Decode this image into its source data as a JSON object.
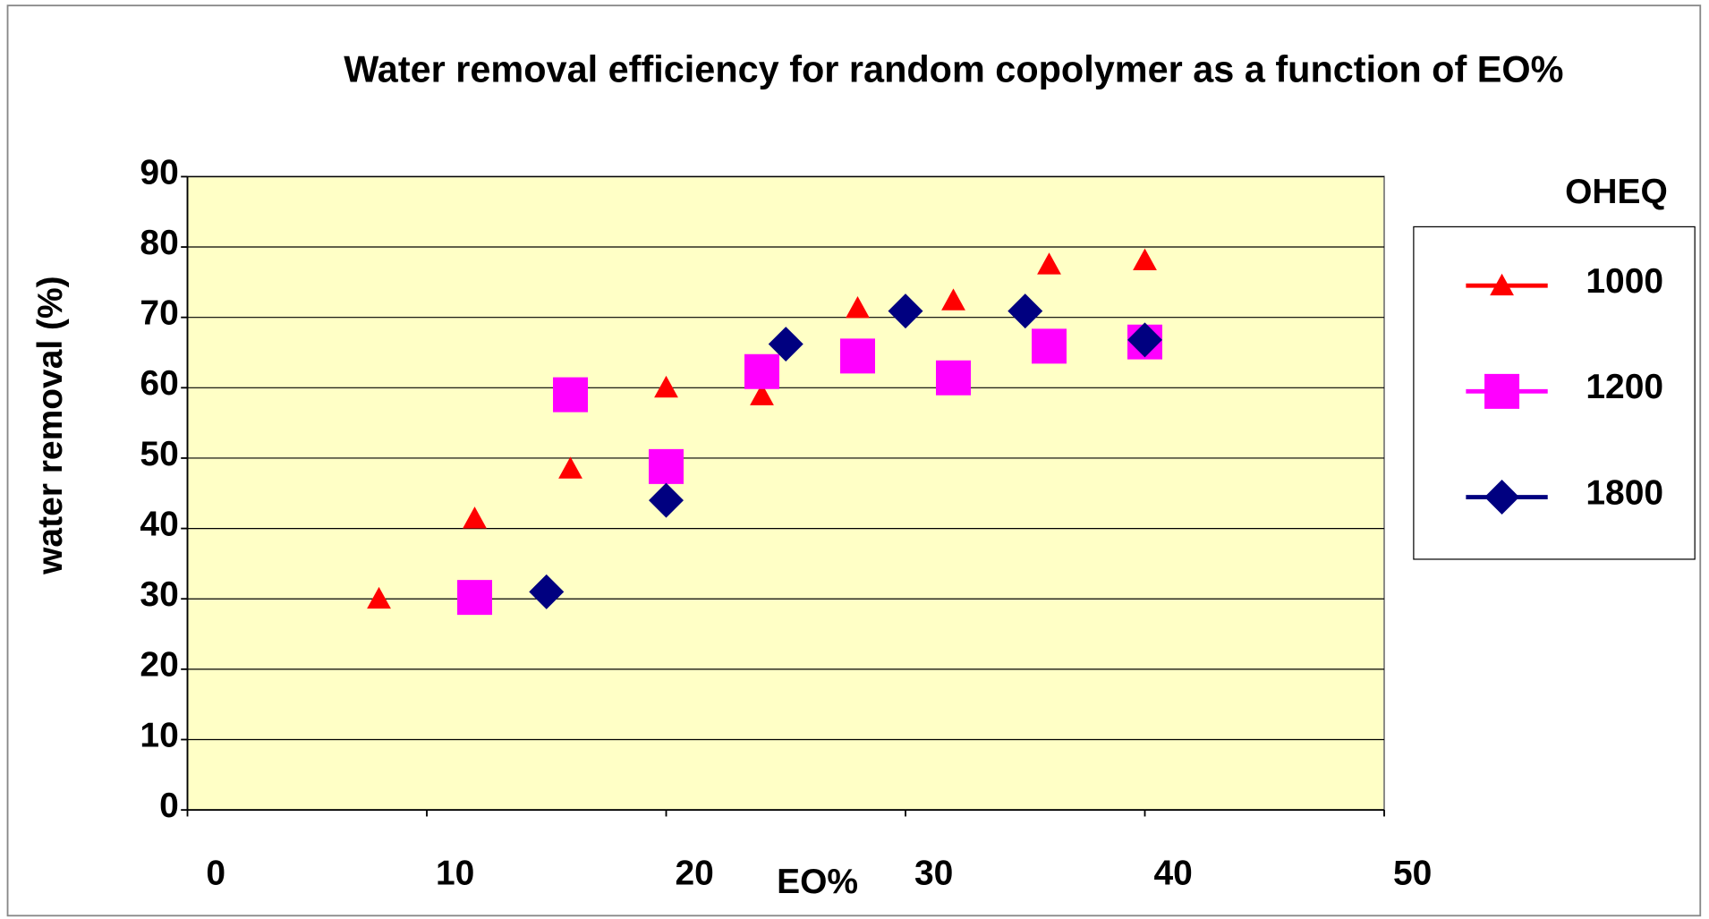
{
  "chart_data": {
    "type": "scatter",
    "title": "Water removal efficiency for random copolymer as a function of EO%",
    "xlabel": "EO%",
    "ylabel": "water removal (%)",
    "legend_title": "OHEQ",
    "legend": "right",
    "xlim": [
      0,
      50
    ],
    "xticks": [
      0,
      10,
      20,
      30,
      40,
      50
    ],
    "ylim": [
      0,
      90
    ],
    "yticks": [
      0,
      10,
      20,
      30,
      40,
      50,
      60,
      70,
      80,
      90
    ],
    "grid": true,
    "background": "#ffffc6",
    "series": [
      {
        "name": "1000",
        "color": "#ff0000",
        "marker": "triangle",
        "x": [
          8,
          12,
          16,
          20,
          24,
          28,
          32,
          36,
          40
        ],
        "values": [
          30,
          41.4,
          48.5,
          60,
          58.9,
          71.3,
          72.4,
          77.5,
          78.1
        ]
      },
      {
        "name": "1200",
        "color": "#ff00ff",
        "marker": "square",
        "x": [
          12,
          16,
          20,
          24,
          28,
          32,
          36,
          40
        ],
        "values": [
          30.2,
          59,
          48.8,
          62.3,
          64.5,
          61.4,
          65.9,
          66.5
        ]
      },
      {
        "name": "1800",
        "color": "#000080",
        "marker": "diamond",
        "x": [
          15,
          20,
          25,
          30,
          35,
          40
        ],
        "values": [
          31,
          44,
          66.2,
          70.9,
          70.9,
          66.8
        ]
      }
    ]
  }
}
